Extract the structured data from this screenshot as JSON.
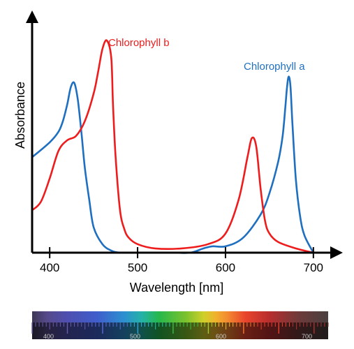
{
  "chart_data": {
    "type": "line",
    "xlabel": "Wavelength [nm]",
    "ylabel": "Absorbance",
    "x_ticks": [
      400,
      500,
      600,
      700
    ],
    "xlim": [
      380,
      720
    ],
    "ylim": [
      0,
      1
    ],
    "grid": false,
    "legend": "inline labels",
    "series": [
      {
        "name": "Chlorophyll a",
        "color": "#1f6fc0",
        "x": [
          380,
          400,
          410,
          415,
          420,
          424,
          428,
          432,
          436,
          440,
          445,
          450,
          460,
          470,
          480,
          500,
          540,
          560,
          575,
          585,
          600,
          620,
          640,
          650,
          660,
          665,
          668,
          670,
          672,
          674,
          676,
          680,
          685,
          690,
          700
        ],
        "y": [
          0.45,
          0.52,
          0.57,
          0.62,
          0.7,
          0.78,
          0.8,
          0.72,
          0.57,
          0.4,
          0.25,
          0.12,
          0.04,
          0.01,
          0.0,
          0.0,
          0.0,
          0.0,
          0.02,
          0.03,
          0.03,
          0.07,
          0.18,
          0.28,
          0.43,
          0.55,
          0.68,
          0.78,
          0.83,
          0.78,
          0.62,
          0.35,
          0.17,
          0.08,
          0.0
        ]
      },
      {
        "name": "Chlorophyll b",
        "color": "#ee1c1c",
        "x": [
          380,
          390,
          400,
          410,
          420,
          430,
          440,
          450,
          455,
          460,
          465,
          470,
          472,
          475,
          480,
          485,
          490,
          500,
          520,
          550,
          580,
          600,
          615,
          625,
          630,
          635,
          640,
          645,
          650,
          660,
          680,
          700
        ],
        "y": [
          0.2,
          0.24,
          0.35,
          0.48,
          0.53,
          0.55,
          0.62,
          0.75,
          0.85,
          0.96,
          1.0,
          0.92,
          0.7,
          0.45,
          0.2,
          0.11,
          0.07,
          0.04,
          0.02,
          0.02,
          0.04,
          0.09,
          0.25,
          0.45,
          0.54,
          0.5,
          0.3,
          0.15,
          0.09,
          0.05,
          0.02,
          0.0
        ]
      }
    ]
  },
  "spectrum_bar": {
    "labels": [
      "400",
      "500",
      "600",
      "700"
    ]
  }
}
